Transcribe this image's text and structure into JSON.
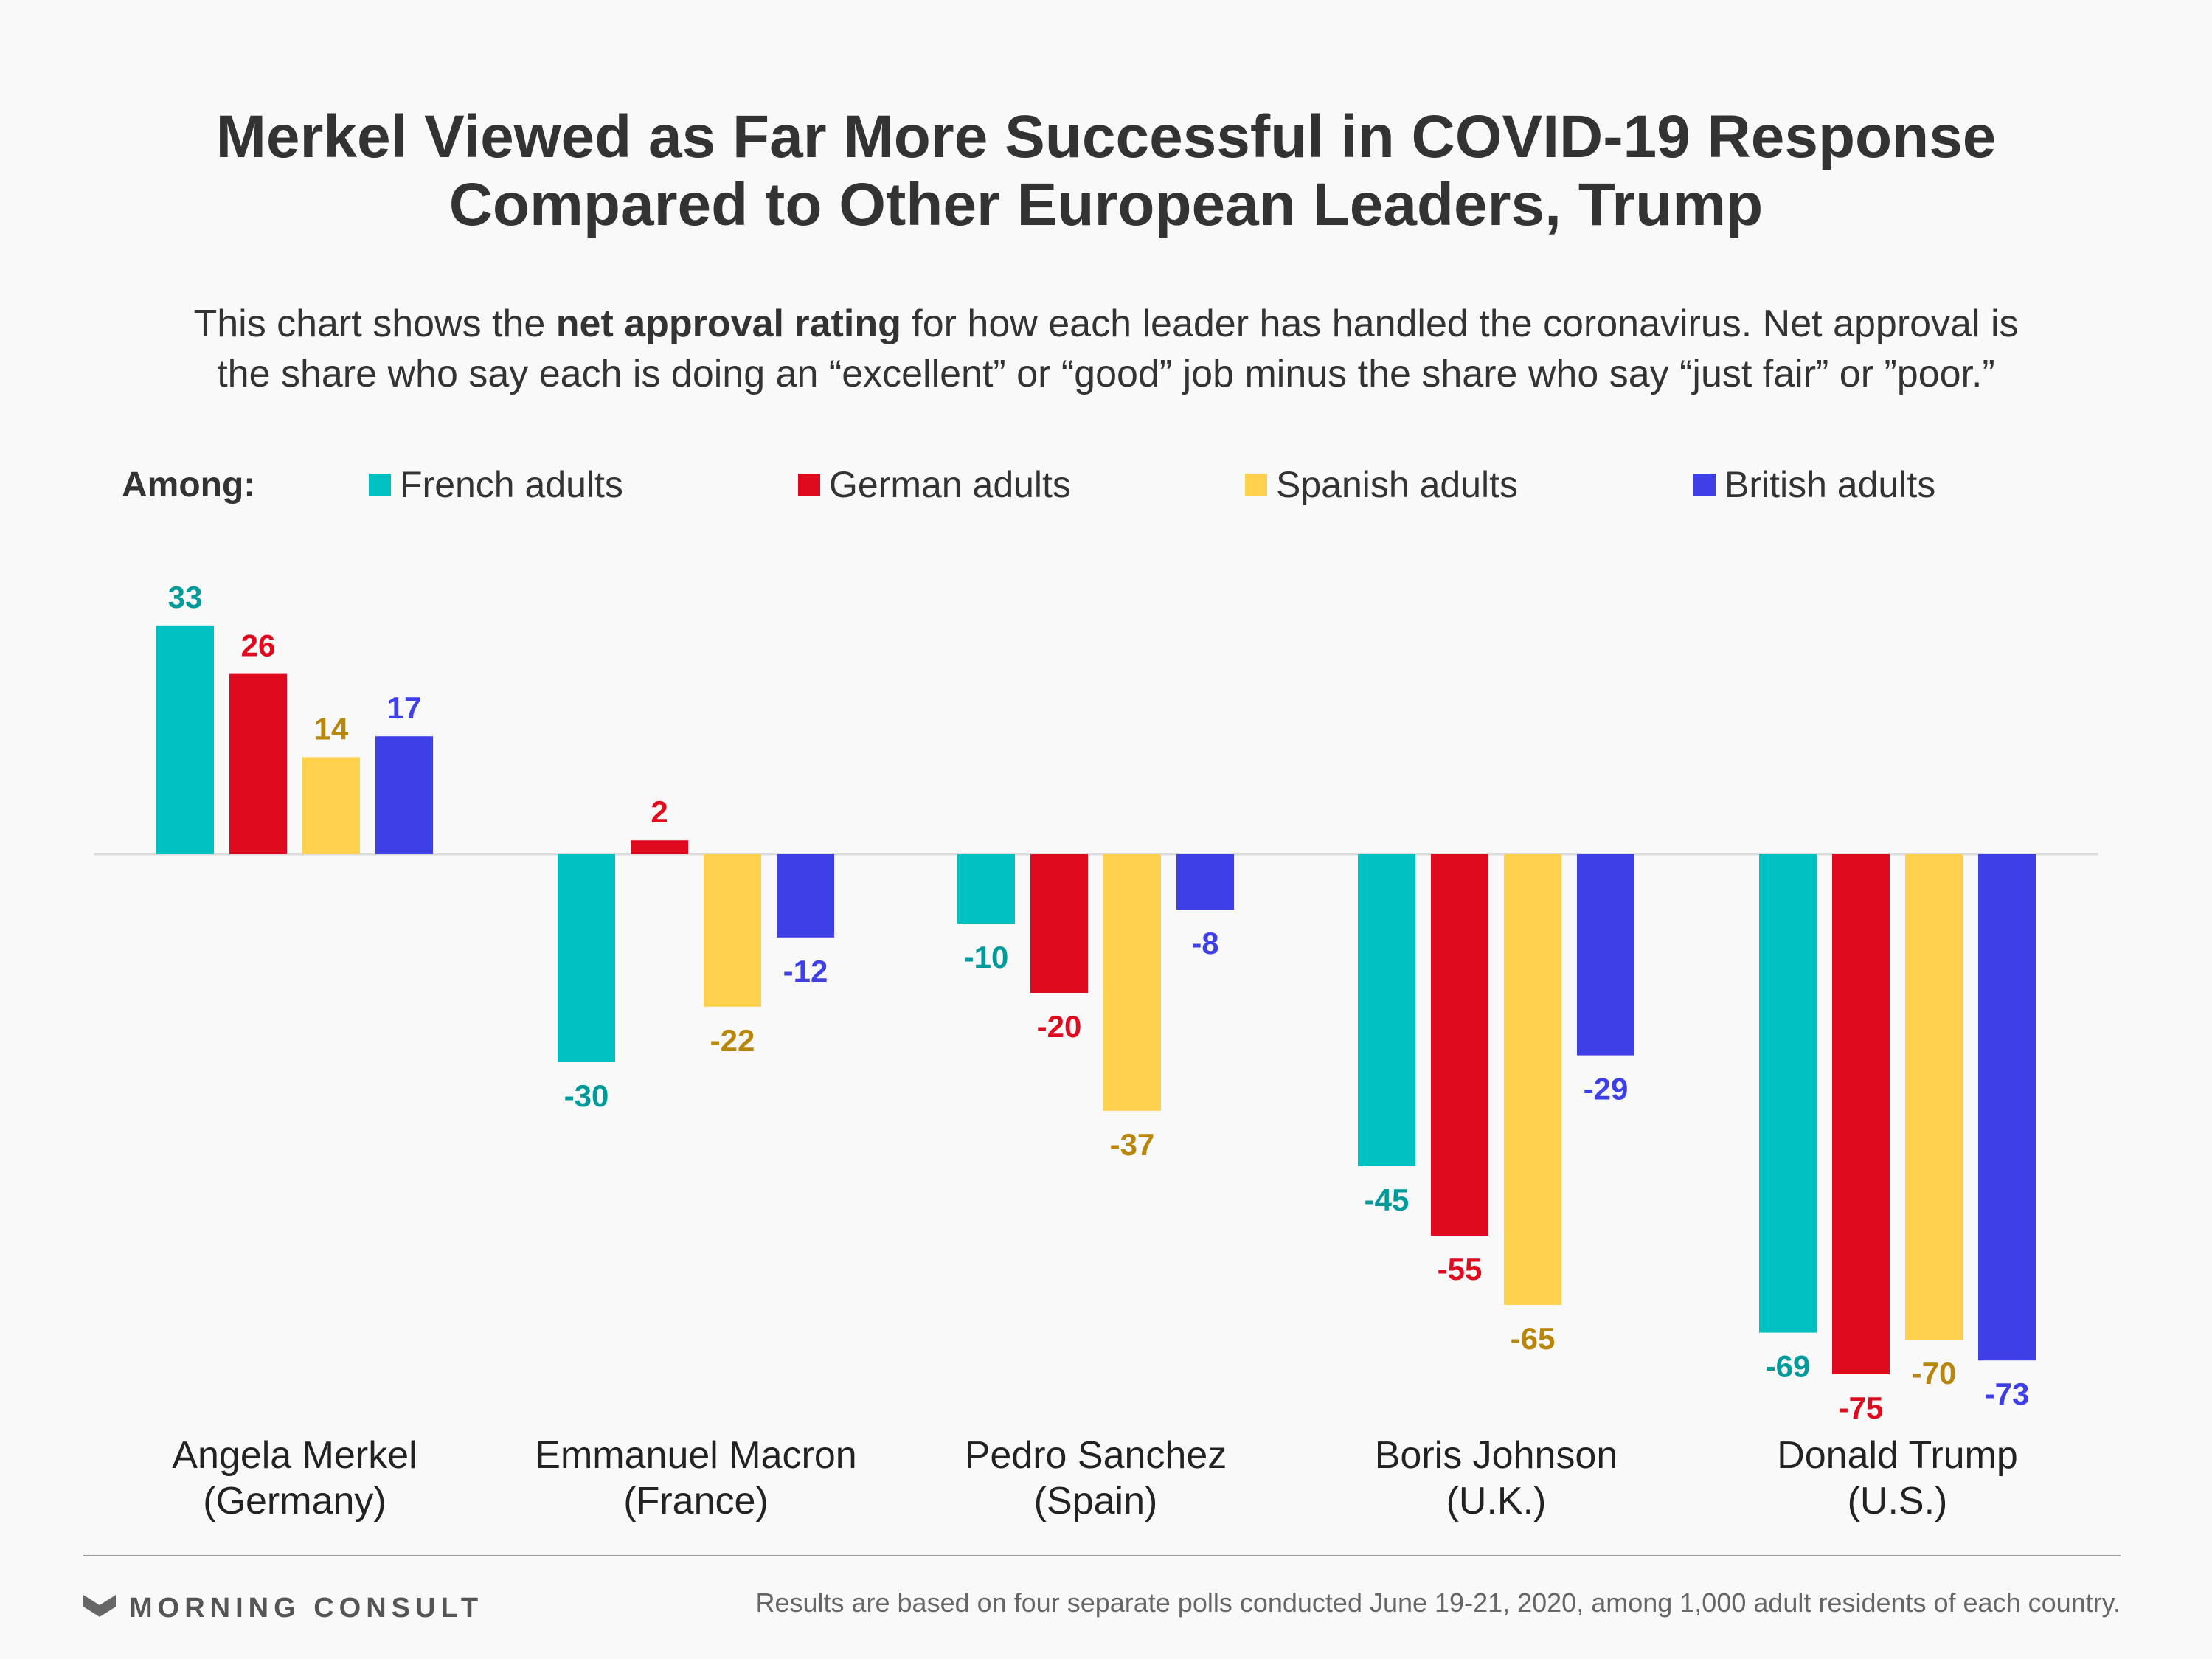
{
  "title_lines": [
    "Merkel Viewed as Far More Successful in COVID-19 Response",
    "Compared to Other European Leaders, Trump"
  ],
  "subtitle": {
    "line1_pre": "This chart shows the ",
    "line1_bold": "net approval rating",
    "line1_post": " for how each leader has handled the coronavirus. Net approval is",
    "line2": "the share who say each is doing an “excellent” or “good” job minus the share who say “just fair” or ”poor.”"
  },
  "legend": {
    "label": "Among:"
  },
  "chart_data": {
    "type": "bar",
    "categories": [
      [
        "Angela Merkel",
        "(Germany)"
      ],
      [
        "Emmanuel Macron",
        "(France)"
      ],
      [
        "Pedro Sanchez",
        "(Spain)"
      ],
      [
        "Boris Johnson",
        "(U.K.)"
      ],
      [
        "Donald Trump",
        "(U.S.)"
      ]
    ],
    "series": [
      {
        "name": "French adults",
        "color": "#00c1c1",
        "label_color": "#009a9a",
        "values": [
          33,
          -30,
          -10,
          -45,
          -69
        ]
      },
      {
        "name": "German adults",
        "color": "#e00a1f",
        "label_color": "#e00a1f",
        "values": [
          26,
          2,
          -20,
          -55,
          -75
        ]
      },
      {
        "name": "Spanish adults",
        "color": "#ffd14f",
        "label_color": "#b8860b",
        "values": [
          14,
          -22,
          -37,
          -65,
          -70
        ]
      },
      {
        "name": "British adults",
        "color": "#3f3fe8",
        "label_color": "#3f3fe8",
        "values": [
          17,
          -12,
          -8,
          -29,
          -73
        ]
      }
    ],
    "ylim": [
      -75,
      33
    ],
    "grid": false,
    "legend_position": "top"
  },
  "footer": {
    "brand": "MORNING CONSULT",
    "note": "Results are based on four separate polls conducted June 19-21, 2020, among 1,000 adult residents of each country."
  }
}
